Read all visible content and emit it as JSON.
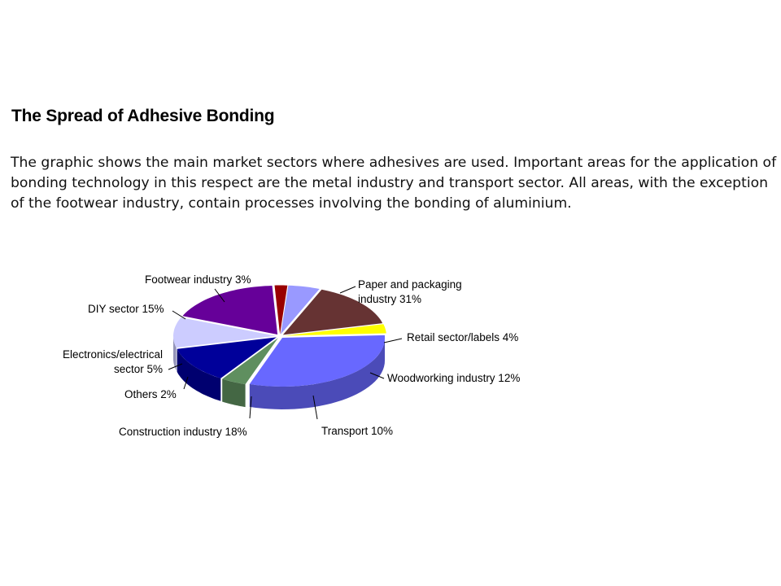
{
  "page": {
    "title": "The Spread of Adhesive Bonding",
    "description": "The graphic shows the main market sectors where adhesives are used. Important areas for the application of bonding technology in this respect are the metal industry and transport sector. All areas, with the exception of the footwear industry, contain processes involving the bonding of aluminium."
  },
  "chart_data": {
    "type": "pie",
    "title": "",
    "style": "3d-exploded",
    "unit": "%",
    "slices": [
      {
        "label": "Paper and packaging industry 31%",
        "label_lines": [
          "Paper and packaging",
          "industry 31%"
        ],
        "value": 31,
        "color": "#6868ff"
      },
      {
        "label": "Retail sector/labels 4%",
        "label_lines": [
          "Retail sector/labels 4%"
        ],
        "value": 4,
        "color": "#5f8f5f"
      },
      {
        "label": "Woodworking industry 12%",
        "label_lines": [
          "Woodworking industry 12%"
        ],
        "value": 12,
        "color": "#00009a"
      },
      {
        "label": "Transport 10%",
        "label_lines": [
          "Transport 10%"
        ],
        "value": 10,
        "color": "#ccccff"
      },
      {
        "label": "Construction industry 18%",
        "label_lines": [
          "Construction industry 18%"
        ],
        "value": 18,
        "color": "#660099"
      },
      {
        "label": "Others 2%",
        "label_lines": [
          "Others 2%"
        ],
        "value": 2,
        "color": "#990000"
      },
      {
        "label": "Electronics/electrical sector 5%",
        "label_lines": [
          "Electronics/electrical",
          "sector 5%"
        ],
        "value": 5,
        "color": "#9999ff"
      },
      {
        "label": "DIY sector 15%",
        "label_lines": [
          "DIY sector 15%"
        ],
        "value": 15,
        "color": "#663333"
      },
      {
        "label": "Footwear industry 3%",
        "label_lines": [
          "Footwear industry 3%"
        ],
        "value": 3,
        "color": "#ffff00"
      }
    ]
  }
}
